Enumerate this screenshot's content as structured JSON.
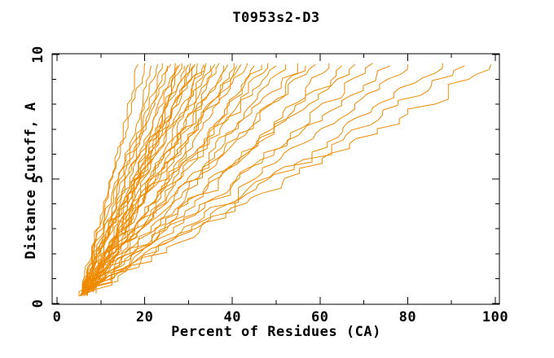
{
  "chart_data": {
    "type": "line",
    "title": "T0953s2-D3",
    "xlabel": "Percent of Residues (CA)",
    "ylabel": "Distance Cutoff, A",
    "xlim": [
      0,
      100
    ],
    "ylim": [
      0,
      10
    ],
    "x_major_ticks": [
      0,
      20,
      40,
      60,
      80,
      100
    ],
    "x_minor_ticks": [
      10,
      30,
      50,
      70,
      90
    ],
    "y_major_ticks": [
      0,
      5,
      10
    ],
    "y_minor_ticks": [
      1,
      2,
      3,
      4,
      6,
      7,
      8,
      9
    ],
    "x_tick_labels": [
      "0",
      "20",
      "40",
      "60",
      "80",
      "100"
    ],
    "y_tick_labels": [
      "0",
      "5",
      "10"
    ],
    "grid": false,
    "legend": "none",
    "frame": "full box, ticks pointing inward on all four sides",
    "series_color": "#ef8a00",
    "curve_format": [
      "start_percent",
      "start_cutoff_A",
      "end_percent",
      "end_cutoff_A",
      "shape_exponent"
    ],
    "curves_note": "One unlabeled orange curve per predicted model; x = percent of CA residues within distance cutoff y. Endpoints estimated from pixels; intermediate points interpolated.",
    "curves": [
      [
        5.2,
        0.35,
        18.5,
        9.6,
        0.95
      ],
      [
        5.0,
        0.3,
        20.0,
        9.65,
        1.05
      ],
      [
        5.6,
        0.4,
        21.5,
        9.55,
        0.85
      ],
      [
        6.0,
        0.45,
        23.0,
        9.6,
        1.15
      ],
      [
        5.3,
        0.3,
        24.0,
        9.65,
        0.9
      ],
      [
        5.8,
        0.5,
        25.0,
        9.55,
        1.0
      ],
      [
        5.1,
        0.3,
        26.0,
        9.6,
        1.2
      ],
      [
        6.3,
        0.45,
        27.0,
        9.65,
        0.88
      ],
      [
        5.5,
        0.35,
        27.5,
        9.55,
        1.1
      ],
      [
        5.9,
        0.5,
        28.0,
        9.6,
        0.8
      ],
      [
        5.2,
        0.3,
        28.5,
        9.65,
        1.0
      ],
      [
        6.6,
        0.55,
        29.0,
        9.55,
        0.92
      ],
      [
        5.4,
        0.35,
        30.0,
        9.6,
        1.18
      ],
      [
        6.1,
        0.45,
        30.5,
        9.65,
        0.85
      ],
      [
        5.7,
        0.4,
        31.0,
        9.55,
        1.05
      ],
      [
        5.0,
        0.28,
        31.5,
        9.6,
        0.95
      ],
      [
        6.4,
        0.5,
        32.0,
        9.65,
        1.12
      ],
      [
        5.3,
        0.32,
        33.0,
        9.55,
        0.82
      ],
      [
        5.8,
        0.42,
        33.5,
        9.6,
        1.0
      ],
      [
        6.9,
        0.55,
        34.0,
        9.65,
        0.9
      ],
      [
        5.5,
        0.35,
        35.0,
        9.55,
        1.15
      ],
      [
        6.2,
        0.48,
        36.0,
        9.6,
        0.87
      ],
      [
        5.1,
        0.3,
        37.0,
        9.65,
        1.02
      ],
      [
        5.9,
        0.45,
        38.0,
        9.55,
        0.93
      ],
      [
        6.6,
        0.5,
        39.0,
        9.6,
        1.1
      ],
      [
        5.4,
        0.33,
        40.0,
        9.65,
        0.84
      ],
      [
        6.0,
        0.45,
        41.0,
        9.55,
        1.05
      ],
      [
        5.6,
        0.38,
        42.0,
        9.6,
        0.9
      ],
      [
        7.1,
        0.55,
        43.5,
        9.65,
        1.18
      ],
      [
        5.2,
        0.3,
        45.0,
        9.55,
        0.86
      ],
      [
        6.3,
        0.48,
        46.5,
        9.6,
        1.0
      ],
      [
        5.7,
        0.4,
        48.0,
        9.65,
        0.95
      ],
      [
        6.8,
        0.52,
        50.0,
        9.55,
        1.12
      ],
      [
        5.3,
        0.32,
        52.0,
        9.6,
        0.88
      ],
      [
        6.1,
        0.45,
        54.0,
        9.65,
        1.03
      ],
      [
        5.8,
        0.4,
        56.5,
        9.55,
        0.92
      ],
      [
        6.5,
        0.5,
        59.0,
        9.6,
        1.08
      ],
      [
        5.5,
        0.35,
        62.0,
        9.65,
        0.85
      ],
      [
        7.0,
        0.55,
        65.0,
        9.55,
        0.97
      ],
      [
        5.9,
        0.42,
        68.0,
        9.6,
        1.05
      ],
      [
        6.2,
        0.45,
        72.0,
        9.65,
        0.9
      ],
      [
        5.6,
        0.36,
        76.0,
        9.55,
        1.0
      ],
      [
        6.7,
        0.5,
        80.0,
        9.6,
        0.93
      ],
      [
        5.4,
        0.33,
        88.0,
        9.65,
        0.96
      ],
      [
        6.0,
        0.42,
        93.0,
        9.55,
        1.02
      ],
      [
        6.4,
        0.46,
        99.0,
        9.6,
        0.98
      ]
    ]
  }
}
